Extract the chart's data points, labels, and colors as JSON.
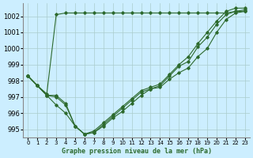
{
  "background_color": "#cceeff",
  "grid_color": "#aacccc",
  "line_color": "#2d6a2d",
  "title": "Graphe pression niveau de la mer (hPa)",
  "xlim": [
    -0.5,
    23.5
  ],
  "ylim": [
    994.5,
    1002.8
  ],
  "yticks": [
    995,
    996,
    997,
    998,
    999,
    1000,
    1001,
    1002
  ],
  "xticks": [
    0,
    1,
    2,
    3,
    4,
    5,
    6,
    7,
    8,
    9,
    10,
    11,
    12,
    13,
    14,
    15,
    16,
    17,
    18,
    19,
    20,
    21,
    22,
    23
  ],
  "series": [
    [
      998.3,
      997.7,
      997.2,
      1002.1,
      1002.2,
      1002.2,
      1002.2,
      1002.2,
      1002.2,
      1002.2,
      1002.2,
      1002.2,
      1002.2,
      1002.2,
      1002.2,
      1002.2,
      1002.2,
      1002.2,
      1002.2,
      1002.2,
      1002.2,
      1002.2,
      1002.3,
      1002.3
    ],
    [
      998.3,
      997.7,
      997.1,
      997.1,
      996.6,
      995.2,
      994.7,
      994.8,
      995.2,
      995.7,
      996.1,
      996.6,
      997.1,
      997.5,
      997.6,
      998.1,
      998.5,
      998.8,
      999.5,
      1000.0,
      1001.0,
      1001.8,
      1002.2,
      1002.3
    ],
    [
      998.3,
      997.7,
      997.1,
      997.0,
      996.5,
      995.2,
      994.7,
      994.8,
      995.3,
      995.8,
      996.3,
      996.8,
      997.3,
      997.5,
      997.7,
      998.3,
      998.9,
      999.2,
      1000.1,
      1000.7,
      1001.5,
      1002.1,
      1002.3,
      1002.4
    ],
    [
      998.3,
      997.7,
      997.1,
      996.5,
      996.0,
      995.2,
      994.7,
      994.9,
      995.4,
      995.9,
      996.4,
      996.9,
      997.4,
      997.6,
      997.8,
      998.4,
      999.0,
      999.5,
      1000.3,
      1001.0,
      1001.7,
      1002.3,
      1002.5,
      1002.5
    ]
  ]
}
